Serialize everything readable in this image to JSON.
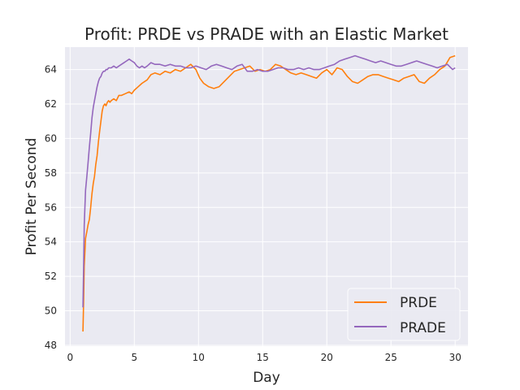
{
  "chart_data": {
    "type": "line",
    "title": "Profit: PRDE vs PRADE with an Elastic Market",
    "xlabel": "Day",
    "ylabel": "Profit Per Second",
    "xlim": [
      -0.4,
      31.0
    ],
    "ylim": [
      47.95,
      65.3
    ],
    "xticks": [
      0,
      5,
      10,
      15,
      20,
      25,
      30
    ],
    "yticks": [
      48,
      50,
      52,
      54,
      56,
      58,
      60,
      62,
      64
    ],
    "grid": true,
    "background": "#eaeaf2",
    "legend": {
      "position": "lower-right"
    },
    "series": [
      {
        "name": "PRDE",
        "color": "#ff7f0e",
        "x": [
          1.0,
          1.05,
          1.1,
          1.2,
          1.3,
          1.4,
          1.5,
          1.6,
          1.7,
          1.8,
          1.9,
          2.0,
          2.1,
          2.2,
          2.3,
          2.4,
          2.5,
          2.6,
          2.7,
          2.8,
          2.9,
          3.0,
          3.1,
          3.2,
          3.4,
          3.6,
          3.8,
          4.0,
          4.3,
          4.6,
          4.8,
          5.0,
          5.3,
          5.6,
          6.0,
          6.3,
          6.6,
          7.0,
          7.4,
          7.8,
          8.2,
          8.6,
          9.0,
          9.4,
          9.8,
          10.1,
          10.4,
          10.8,
          11.2,
          11.6,
          12.0,
          12.4,
          12.8,
          13.2,
          13.6,
          14.0,
          14.4,
          14.8,
          15.2,
          15.6,
          16.0,
          16.4,
          16.8,
          17.2,
          17.6,
          18.0,
          18.4,
          18.8,
          19.2,
          19.6,
          20.0,
          20.4,
          20.8,
          21.2,
          21.6,
          22.0,
          22.4,
          22.8,
          23.2,
          23.6,
          24.0,
          24.4,
          24.8,
          25.2,
          25.6,
          26.0,
          26.4,
          26.8,
          27.2,
          27.6,
          28.0,
          28.4,
          28.8,
          29.2,
          29.6,
          30.0
        ],
        "values": [
          48.8,
          50.5,
          52.6,
          54.2,
          54.6,
          55.0,
          55.3,
          56.0,
          56.8,
          57.4,
          57.8,
          58.5,
          59.0,
          59.8,
          60.4,
          61.0,
          61.6,
          61.9,
          62.0,
          61.9,
          62.1,
          62.2,
          62.1,
          62.2,
          62.3,
          62.2,
          62.5,
          62.5,
          62.6,
          62.7,
          62.6,
          62.8,
          63.0,
          63.2,
          63.4,
          63.7,
          63.8,
          63.7,
          63.9,
          63.8,
          64.0,
          63.9,
          64.1,
          64.3,
          64.0,
          63.5,
          63.2,
          63.0,
          62.9,
          63.0,
          63.3,
          63.6,
          63.9,
          64.0,
          64.1,
          64.2,
          63.9,
          64.0,
          63.9,
          64.0,
          64.3,
          64.2,
          64.0,
          63.8,
          63.7,
          63.8,
          63.7,
          63.6,
          63.5,
          63.8,
          64.0,
          63.7,
          64.1,
          64.0,
          63.6,
          63.3,
          63.2,
          63.4,
          63.6,
          63.7,
          63.7,
          63.6,
          63.5,
          63.4,
          63.3,
          63.5,
          63.6,
          63.7,
          63.3,
          63.2,
          63.5,
          63.7,
          64.0,
          64.2,
          64.7,
          64.8
        ]
      },
      {
        "name": "PRADE",
        "color": "#9467bd",
        "x": [
          1.0,
          1.05,
          1.1,
          1.2,
          1.3,
          1.4,
          1.5,
          1.6,
          1.7,
          1.8,
          1.9,
          2.0,
          2.1,
          2.2,
          2.3,
          2.4,
          2.5,
          2.6,
          2.7,
          2.8,
          2.9,
          3.0,
          3.2,
          3.4,
          3.6,
          3.8,
          4.0,
          4.2,
          4.4,
          4.6,
          4.8,
          5.0,
          5.2,
          5.4,
          5.6,
          5.8,
          6.0,
          6.3,
          6.6,
          7.0,
          7.4,
          7.8,
          8.2,
          8.6,
          9.0,
          9.4,
          9.8,
          10.2,
          10.6,
          11.0,
          11.4,
          11.8,
          12.2,
          12.6,
          13.0,
          13.4,
          13.8,
          14.2,
          14.6,
          15.0,
          15.4,
          15.8,
          16.2,
          16.6,
          17.0,
          17.4,
          17.8,
          18.2,
          18.6,
          19.0,
          19.4,
          19.8,
          20.2,
          20.6,
          21.0,
          21.4,
          21.8,
          22.2,
          22.6,
          23.0,
          23.4,
          23.8,
          24.2,
          24.6,
          25.0,
          25.4,
          25.8,
          26.2,
          26.6,
          27.0,
          27.4,
          27.8,
          28.2,
          28.6,
          29.0,
          29.4,
          29.8,
          30.0
        ],
        "values": [
          50.2,
          52.5,
          55.0,
          57.0,
          57.8,
          58.6,
          59.5,
          60.3,
          61.2,
          61.8,
          62.2,
          62.6,
          63.0,
          63.3,
          63.5,
          63.6,
          63.8,
          63.9,
          63.9,
          64.0,
          64.0,
          64.1,
          64.1,
          64.2,
          64.1,
          64.2,
          64.3,
          64.4,
          64.5,
          64.6,
          64.5,
          64.4,
          64.2,
          64.1,
          64.2,
          64.1,
          64.2,
          64.4,
          64.3,
          64.3,
          64.2,
          64.3,
          64.2,
          64.2,
          64.1,
          64.1,
          64.2,
          64.1,
          64.0,
          64.2,
          64.3,
          64.2,
          64.1,
          64.0,
          64.2,
          64.3,
          63.9,
          63.9,
          64.0,
          63.9,
          63.9,
          64.0,
          64.1,
          64.1,
          64.0,
          64.0,
          64.1,
          64.0,
          64.1,
          64.0,
          64.0,
          64.1,
          64.2,
          64.3,
          64.5,
          64.6,
          64.7,
          64.8,
          64.7,
          64.6,
          64.5,
          64.4,
          64.5,
          64.4,
          64.3,
          64.2,
          64.2,
          64.3,
          64.4,
          64.5,
          64.4,
          64.3,
          64.2,
          64.1,
          64.2,
          64.3,
          64.0,
          64.1
        ]
      }
    ]
  }
}
